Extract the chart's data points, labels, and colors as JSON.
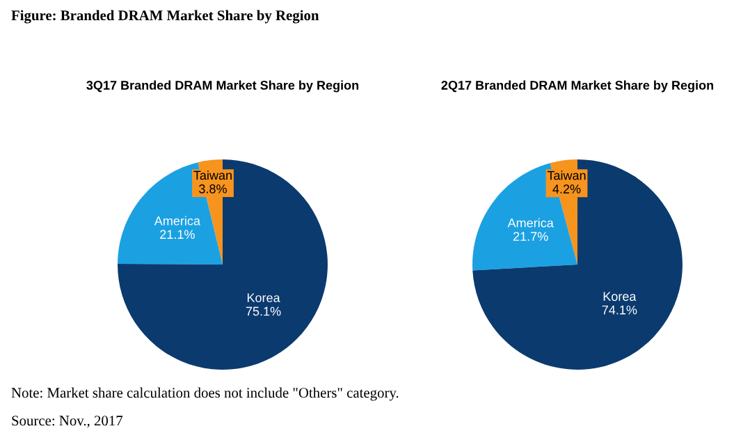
{
  "chart_data": [
    {
      "type": "pie",
      "title": "3Q17 Branded DRAM Market Share by Region",
      "categories": [
        "Taiwan",
        "America",
        "Korea"
      ],
      "values": [
        3.8,
        21.1,
        75.1
      ],
      "value_labels": [
        "3.8%",
        "21.1%",
        "75.1%"
      ],
      "colors": [
        "#f7941d",
        "#1ba1e2",
        "#0b3a6f"
      ],
      "annotations": [
        "Figure: Branded DRAM Market Share by Region"
      ]
    },
    {
      "type": "pie",
      "title": "2Q17 Branded DRAM Market Share by Region",
      "categories": [
        "Taiwan",
        "America",
        "Korea"
      ],
      "values": [
        4.2,
        21.7,
        74.1
      ],
      "value_labels": [
        "4.2%",
        "21.7%",
        "74.1%"
      ],
      "colors": [
        "#f7941d",
        "#1ba1e2",
        "#0b3a6f"
      ],
      "annotations": [
        "Note: Market share calculation does not include \"Others\" category.",
        "Source: Nov., 2017"
      ]
    }
  ]
}
